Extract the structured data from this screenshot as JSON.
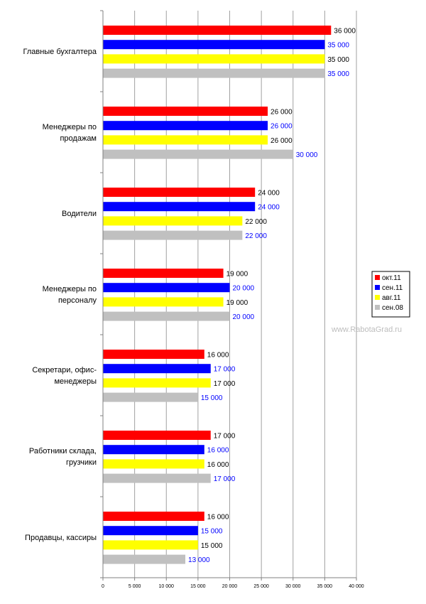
{
  "chart_data": {
    "type": "bar",
    "orientation": "horizontal",
    "categories": [
      "Главные бухгалтера",
      "Менеджеры по продажам",
      "Водители",
      "Менеджеры по персоналу",
      "Секретари, офис-менеджеры",
      "Работники склада, грузчики",
      "Продавцы, кассиры"
    ],
    "category_lines": [
      [
        "Главные бухгалтера"
      ],
      [
        "Менеджеры по",
        "продажам"
      ],
      [
        "Водители"
      ],
      [
        "Менеджеры по",
        "персоналу"
      ],
      [
        "Секретари, офис-",
        "менеджеры"
      ],
      [
        "Работники склада,",
        "грузчики"
      ],
      [
        "Продавцы, кассиры"
      ]
    ],
    "series": [
      {
        "name": "окт.11",
        "color": "#ff0000",
        "label_color": "#000000",
        "values": [
          36000,
          26000,
          24000,
          19000,
          16000,
          17000,
          16000
        ]
      },
      {
        "name": "сен.11",
        "color": "#0000ff",
        "label_color": "#0000ff",
        "values": [
          35000,
          26000,
          24000,
          20000,
          17000,
          16000,
          15000
        ]
      },
      {
        "name": "авг.11",
        "color": "#ffff00",
        "label_color": "#000000",
        "values": [
          35000,
          26000,
          22000,
          19000,
          17000,
          16000,
          15000
        ]
      },
      {
        "name": "сен.08",
        "color": "#c0c0c0",
        "label_color": "#0000ff",
        "values": [
          35000,
          30000,
          22000,
          20000,
          15000,
          17000,
          13000
        ]
      }
    ],
    "data_labels": [
      [
        "36 000",
        "26 000",
        "24 000",
        "19 000",
        "16 000",
        "17 000",
        "16 000"
      ],
      [
        "35 000",
        "26 000",
        "24 000",
        "20 000",
        "17 000",
        "16 000",
        "15 000"
      ],
      [
        "35 000",
        "26 000",
        "22 000",
        "19 000",
        "17 000",
        "16 000",
        "15 000"
      ],
      [
        "35 000",
        "30 000",
        "22 000",
        "20 000",
        "15 000",
        "17 000",
        "13 000"
      ]
    ],
    "x_ticks": [
      0,
      5000,
      10000,
      15000,
      20000,
      25000,
      30000,
      35000,
      40000
    ],
    "x_tick_labels": [
      "0",
      "5 000",
      "10 000",
      "15 000",
      "20 000",
      "25 000",
      "30 000",
      "35 000",
      "40 000"
    ],
    "xlim": [
      0,
      40000
    ],
    "grid": "vertical",
    "legend_position": "right",
    "title": "",
    "xlabel": "",
    "ylabel": ""
  },
  "watermark": "www.RabotaGrad.ru"
}
